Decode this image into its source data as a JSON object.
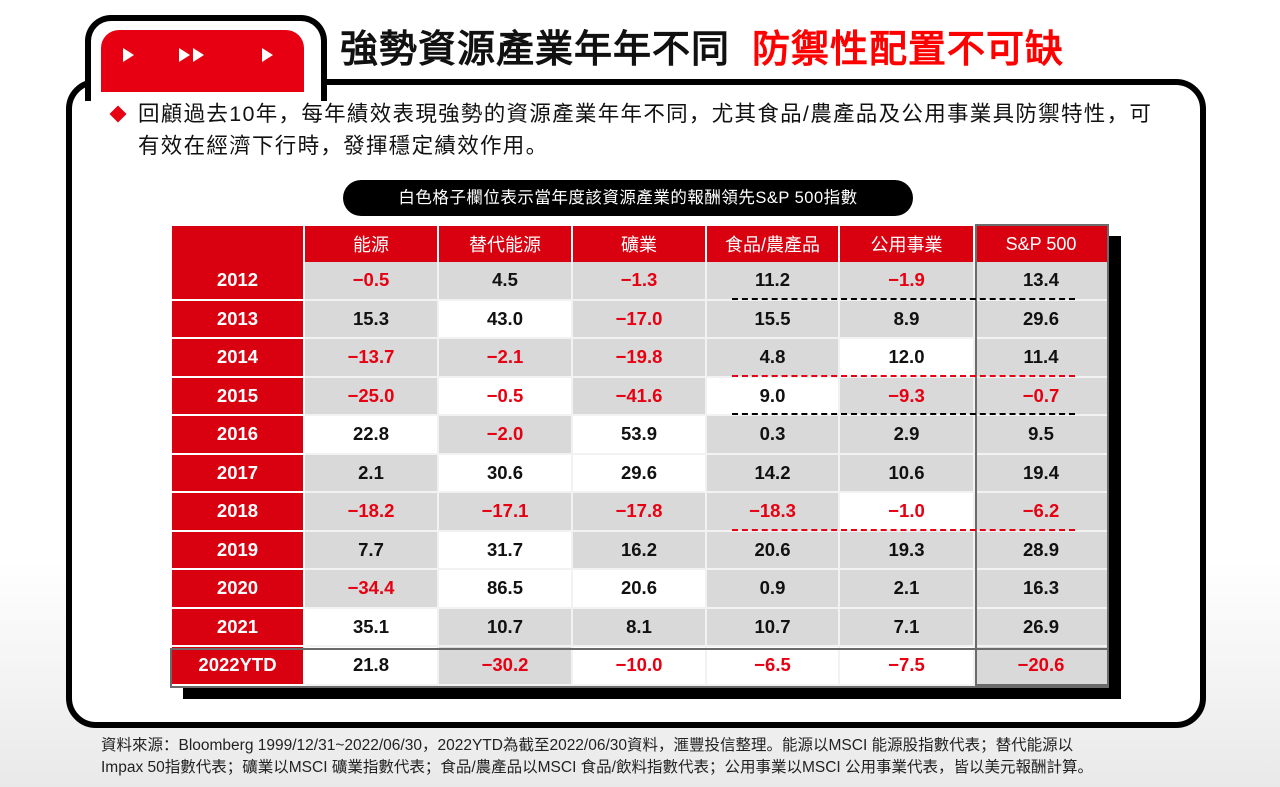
{
  "header": {
    "title_black": "強勢資源產業年年不同",
    "title_red": "防禦性配置不可缺",
    "tab_icons": [
      "play-arrow-icon",
      "fast-forward-icon",
      "play-arrow-icon"
    ]
  },
  "summary": {
    "text": "回顧過去10年，每年績效表現強勢的資源產業年年不同，尤其食品/農產品及公用事業具防禦特性，可有效在經濟下行時，發揮穩定績效作用。"
  },
  "legend_pill": "白色格子欄位表示當年度該資源產業的報酬領先S&P 500指數",
  "colors": {
    "accent_red": "#e60012",
    "cell_gray": "#d9d9d9",
    "cell_white": "#ffffff",
    "negative_text": "#e60012"
  },
  "chart_data": {
    "type": "table",
    "title": "強勢資源產業年年不同 防禦性配置不可缺",
    "subtitle": "白色格子欄位表示當年度該資源產業的報酬領先S&P 500指數",
    "columns": [
      "",
      "能源",
      "替代能源",
      "礦業",
      "食品/農產品",
      "公用事業",
      "S&P 500"
    ],
    "rows": [
      {
        "year": "2012",
        "values": [
          "-0.5",
          "4.5",
          "-1.3",
          "11.2",
          "-1.9",
          "13.4"
        ],
        "white": [
          false,
          false,
          false,
          false,
          false,
          false
        ]
      },
      {
        "year": "2013",
        "values": [
          "15.3",
          "43.0",
          "-17.0",
          "15.5",
          "8.9",
          "29.6"
        ],
        "white": [
          false,
          true,
          false,
          false,
          false,
          false
        ]
      },
      {
        "year": "2014",
        "values": [
          "-13.7",
          "-2.1",
          "-19.8",
          "4.8",
          "12.0",
          "11.4"
        ],
        "white": [
          false,
          false,
          false,
          false,
          true,
          false
        ]
      },
      {
        "year": "2015",
        "values": [
          "-25.0",
          "-0.5",
          "-41.6",
          "9.0",
          "-9.3",
          "-0.7"
        ],
        "white": [
          false,
          true,
          false,
          true,
          false,
          false
        ]
      },
      {
        "year": "2016",
        "values": [
          "22.8",
          "-2.0",
          "53.9",
          "0.3",
          "2.9",
          "9.5"
        ],
        "white": [
          true,
          false,
          true,
          false,
          false,
          false
        ]
      },
      {
        "year": "2017",
        "values": [
          "2.1",
          "30.6",
          "29.6",
          "14.2",
          "10.6",
          "19.4"
        ],
        "white": [
          false,
          true,
          true,
          false,
          false,
          false
        ]
      },
      {
        "year": "2018",
        "values": [
          "-18.2",
          "-17.1",
          "-17.8",
          "-18.3",
          "-1.0",
          "-6.2"
        ],
        "white": [
          false,
          false,
          false,
          false,
          true,
          false
        ]
      },
      {
        "year": "2019",
        "values": [
          "7.7",
          "31.7",
          "16.2",
          "20.6",
          "19.3",
          "28.9"
        ],
        "white": [
          false,
          true,
          false,
          false,
          false,
          false
        ]
      },
      {
        "year": "2020",
        "values": [
          "-34.4",
          "86.5",
          "20.6",
          "0.9",
          "2.1",
          "16.3"
        ],
        "white": [
          false,
          true,
          true,
          false,
          false,
          false
        ]
      },
      {
        "year": "2021",
        "values": [
          "35.1",
          "10.7",
          "8.1",
          "10.7",
          "7.1",
          "26.9"
        ],
        "white": [
          true,
          false,
          false,
          false,
          false,
          false
        ]
      },
      {
        "year": "2022YTD",
        "values": [
          "21.8",
          "-30.2",
          "-10.0",
          "-6.5",
          "-7.5",
          "-20.6"
        ],
        "white": [
          true,
          false,
          true,
          true,
          true,
          false
        ]
      }
    ],
    "dashed_lines": [
      {
        "after_year": "2012",
        "color": "black",
        "span": "食品/農產品–S&P 500"
      },
      {
        "after_year": "2014",
        "color": "red",
        "span": "食品/農產品–S&P 500"
      },
      {
        "after_year": "2015",
        "color": "black",
        "span": "食品/農產品–S&P 500"
      },
      {
        "after_year": "2018",
        "color": "red",
        "span": "食品/農產品–S&P 500"
      }
    ],
    "units": "%"
  },
  "footnote": {
    "line1": "資料來源：Bloomberg 1999/12/31~2022/06/30，2022YTD為截至2022/06/30資料，滙豐投信整理。能源以MSCI 能源股指數代表；替代能源以",
    "line2": "Impax 50指數代表；礦業以MSCI 礦業指數代表；食品/農產品以MSCI 食品/飲料指數代表；公用事業以MSCI 公用事業代表，皆以美元報酬計算。"
  }
}
